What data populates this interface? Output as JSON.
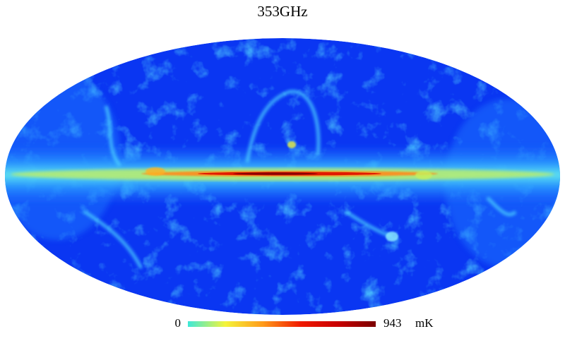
{
  "title": "353GHz",
  "colorbar": {
    "min": 0,
    "max": 943,
    "unit": "mK",
    "colors": [
      "#3ee8d8",
      "#f4f43a",
      "#ff9a1a",
      "#f01a00",
      "#c80000",
      "#7a0000"
    ]
  }
}
